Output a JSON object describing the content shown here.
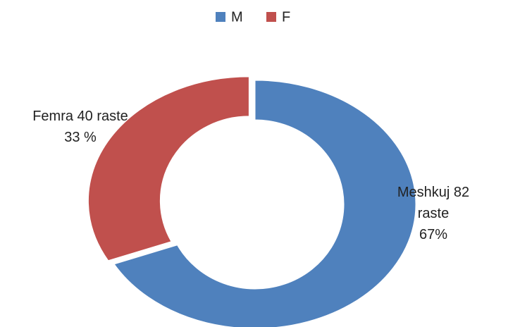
{
  "chart_data": {
    "type": "pie",
    "donut": true,
    "categories": [
      "M",
      "F"
    ],
    "values": [
      67,
      33
    ],
    "value_labels": [
      "Meshkuj 82\nraste\n67%",
      "Femra 40 raste\n33 %"
    ],
    "colors": [
      "#4f81bd",
      "#c0504d"
    ],
    "legend": "top"
  }
}
